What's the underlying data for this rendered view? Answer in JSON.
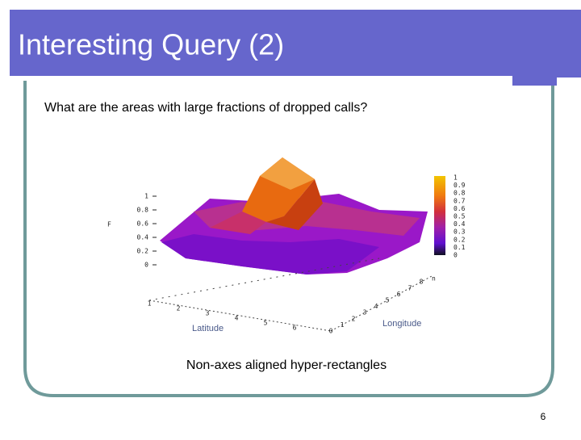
{
  "header": {
    "title": "Interesting Query (2)"
  },
  "body": {
    "question": "What are the areas with large fractions of dropped calls?",
    "caption": "Non-axes aligned hyper-rectangles"
  },
  "figure": {
    "z_axis_label": "F",
    "z_ticks": [
      "1",
      "0.8",
      "0.6",
      "0.4",
      "0.2",
      "0"
    ],
    "colorbar_ticks": [
      "1",
      "0.9",
      "0.8",
      "0.7",
      "0.6",
      "0.5",
      "0.4",
      "0.3",
      "0.2",
      "0.1",
      "0"
    ],
    "x_axis_label": "Latitude",
    "x_ticks": [
      "1",
      "2",
      "3",
      "4",
      "5",
      "6"
    ],
    "y_axis_label": "Longitude",
    "y_ticks": [
      "0",
      "1",
      "2",
      "3",
      "4",
      "5",
      "6",
      "7",
      "8"
    ],
    "corner_label": "n"
  },
  "footer": {
    "page_number": "6"
  }
}
